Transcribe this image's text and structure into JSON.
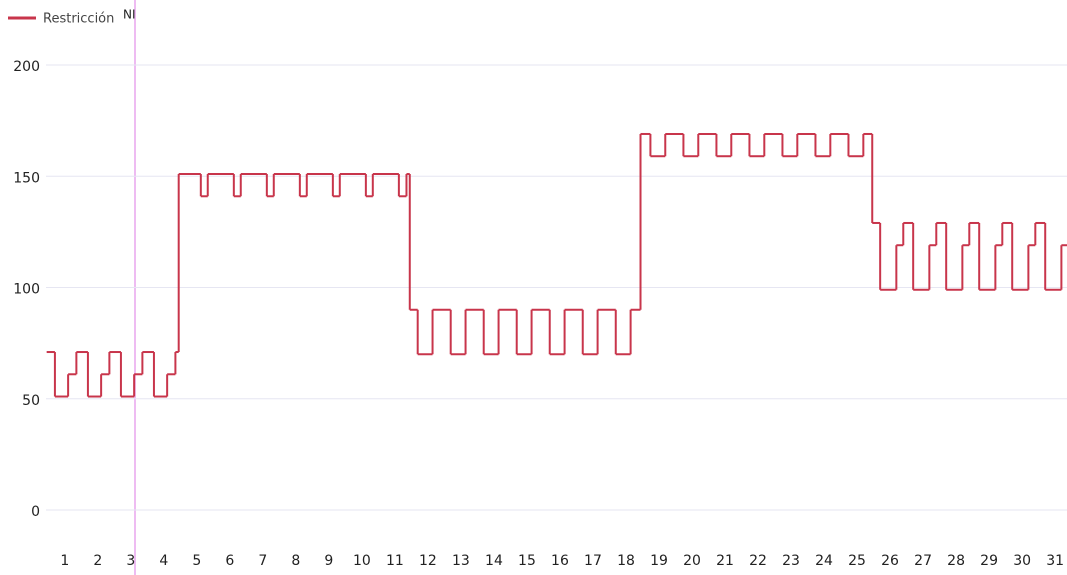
{
  "chart_data": {
    "type": "step",
    "series": [
      {
        "name": "Restricción",
        "color": "#c8354b",
        "x": [
          0.45,
          0.7,
          1.1,
          1.35,
          1.7,
          2.1,
          2.35,
          2.7,
          3.1,
          3.35,
          3.7,
          4.1,
          4.35,
          4.45,
          5.12,
          5.33,
          6.12,
          6.33,
          7.12,
          7.33,
          8.12,
          8.33,
          9.12,
          9.33,
          10.12,
          10.33,
          11.12,
          11.35,
          11.45,
          11.69,
          12.14,
          12.69,
          13.14,
          13.69,
          14.14,
          14.69,
          15.14,
          15.69,
          16.14,
          16.69,
          17.14,
          17.69,
          18.14,
          18.44,
          18.74,
          19.19,
          19.74,
          20.19,
          20.74,
          21.19,
          21.74,
          22.19,
          22.74,
          23.19,
          23.74,
          24.19,
          24.74,
          25.19,
          25.46,
          25.7,
          26.19,
          26.4,
          26.7,
          27.19,
          27.4,
          27.7,
          28.19,
          28.4,
          28.7,
          29.19,
          29.4,
          29.7,
          30.19,
          30.4,
          30.7,
          31.19
        ],
        "values": [
          71,
          51,
          61,
          71,
          51,
          61,
          71,
          51,
          61,
          71,
          51,
          61,
          71,
          151,
          141,
          151,
          141,
          151,
          141,
          151,
          141,
          151,
          141,
          151,
          141,
          151,
          141,
          151,
          90,
          70,
          90,
          70,
          90,
          70,
          90,
          70,
          90,
          70,
          90,
          70,
          90,
          70,
          90,
          169,
          159,
          169,
          159,
          169,
          159,
          169,
          159,
          169,
          159,
          169,
          159,
          169,
          159,
          169,
          129,
          99,
          119,
          129,
          99,
          119,
          129,
          99,
          119,
          129,
          99,
          119,
          129,
          99,
          119,
          129,
          99,
          119
        ]
      }
    ],
    "xlim": [
      0.43,
      31.36
    ],
    "ylim": [
      0,
      200
    ],
    "xticks": [
      1,
      2,
      3,
      4,
      5,
      6,
      7,
      8,
      9,
      10,
      11,
      12,
      13,
      14,
      15,
      16,
      17,
      18,
      19,
      20,
      21,
      22,
      23,
      24,
      25,
      26,
      27,
      28,
      29,
      30,
      31
    ],
    "yticks": [
      0,
      50,
      100,
      150,
      200
    ],
    "grid": true,
    "annotation": "NI"
  }
}
